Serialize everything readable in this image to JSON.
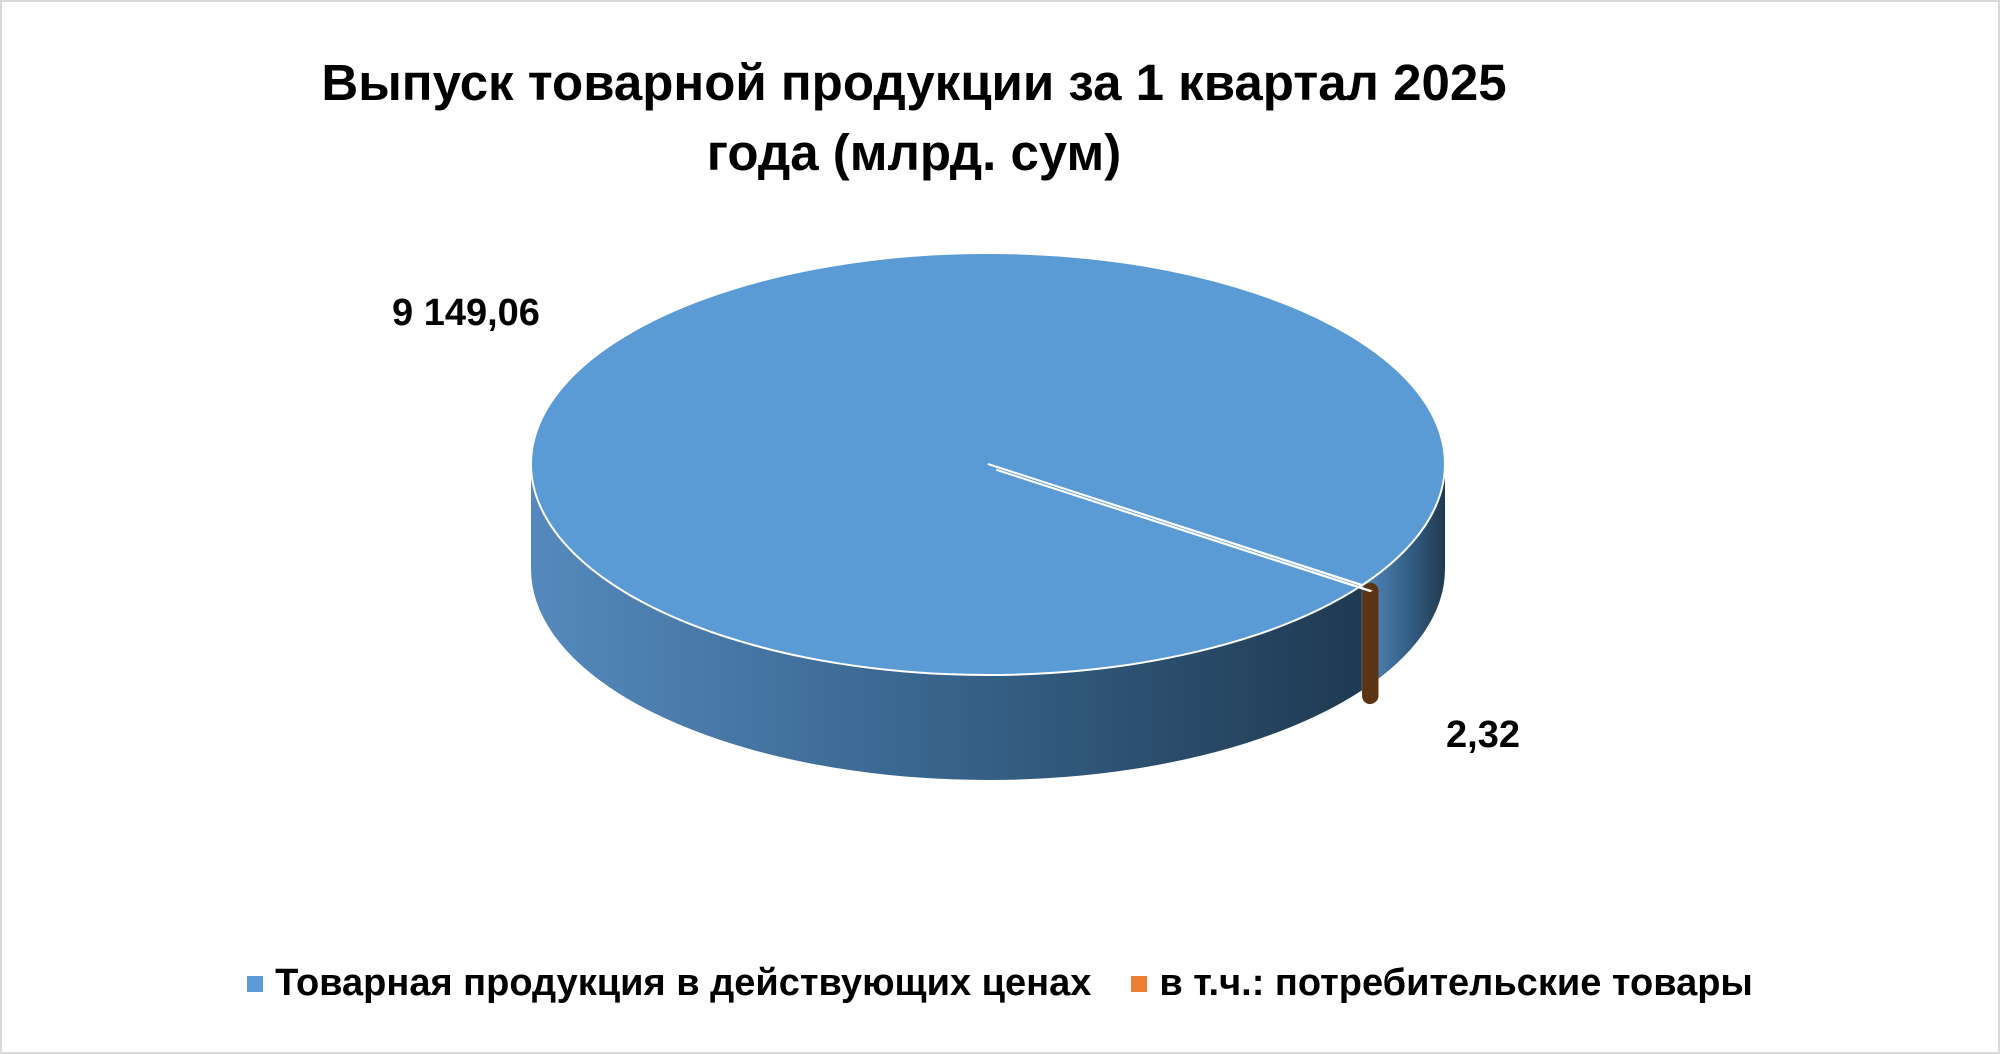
{
  "chart_data": {
    "type": "pie",
    "title": "Выпуск товарной продукции за 1 квартал 2025 года (млрд. сум)",
    "categories": [
      "Товарная продукция в действующих ценах",
      "в т.ч.: потребительские товары"
    ],
    "values": [
      9149.06,
      2.32
    ],
    "value_labels": [
      "9 149,06",
      "2,32"
    ],
    "colors": [
      "#5b9bd5",
      "#ed7d31"
    ],
    "legend": "bottom"
  }
}
